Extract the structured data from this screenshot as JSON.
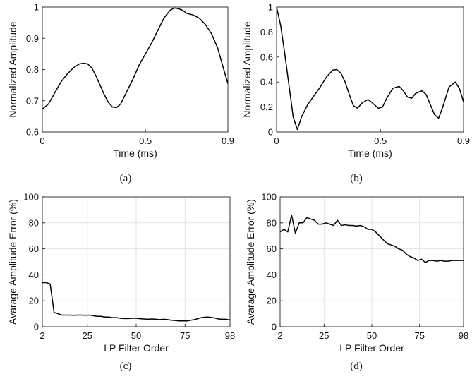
{
  "chart_data": [
    {
      "id": "a",
      "type": "line",
      "caption": "(a)",
      "xlabel": "Time (ms)",
      "ylabel": "Normalized Amplitude",
      "xlim": [
        0,
        0.9
      ],
      "ylim": [
        0.6,
        1
      ],
      "xticks": [
        0,
        0.5,
        0.9
      ],
      "xtick_labels": [
        "0",
        "0.5",
        "0.9"
      ],
      "yticks": [
        0.6,
        0.7,
        0.8,
        0.9,
        1
      ],
      "ytick_labels": [
        "0.6",
        "0.7",
        "0.8",
        "0.9",
        "1"
      ],
      "grid": false,
      "series": [
        {
          "x": [
            0,
            0.03,
            0.06,
            0.09,
            0.12,
            0.15,
            0.18,
            0.2,
            0.22,
            0.24,
            0.26,
            0.28,
            0.3,
            0.32,
            0.34,
            0.36,
            0.38,
            0.41,
            0.44,
            0.47,
            0.5,
            0.53,
            0.56,
            0.59,
            0.62,
            0.64,
            0.66,
            0.68,
            0.7,
            0.73,
            0.76,
            0.79,
            0.82,
            0.85,
            0.88,
            0.9
          ],
          "y": [
            0.673,
            0.69,
            0.725,
            0.76,
            0.785,
            0.805,
            0.818,
            0.82,
            0.818,
            0.805,
            0.78,
            0.75,
            0.72,
            0.695,
            0.68,
            0.678,
            0.69,
            0.73,
            0.77,
            0.815,
            0.85,
            0.885,
            0.925,
            0.965,
            0.99,
            0.997,
            0.995,
            0.99,
            0.98,
            0.975,
            0.965,
            0.945,
            0.915,
            0.87,
            0.8,
            0.755
          ]
        }
      ]
    },
    {
      "id": "b",
      "type": "line",
      "caption": "(b)",
      "xlabel": "Time (ms)",
      "ylabel": "Normalized Amplitude",
      "xlim": [
        0,
        0.9
      ],
      "ylim": [
        0,
        1
      ],
      "xticks": [
        0,
        0.5,
        0.9
      ],
      "xtick_labels": [
        "0",
        "0.5",
        "0.9"
      ],
      "yticks": [
        0,
        0.2,
        0.4,
        0.6,
        0.8,
        1
      ],
      "ytick_labels": [
        "0",
        "0.2",
        "0.4",
        "0.6",
        "0.8",
        "1"
      ],
      "grid": false,
      "series": [
        {
          "x": [
            0,
            0.02,
            0.04,
            0.06,
            0.08,
            0.1,
            0.12,
            0.15,
            0.18,
            0.21,
            0.24,
            0.27,
            0.29,
            0.31,
            0.33,
            0.35,
            0.37,
            0.39,
            0.41,
            0.44,
            0.46,
            0.49,
            0.51,
            0.53,
            0.56,
            0.59,
            0.61,
            0.63,
            0.65,
            0.67,
            0.7,
            0.72,
            0.74,
            0.76,
            0.78,
            0.8,
            0.83,
            0.86,
            0.88,
            0.9
          ],
          "y": [
            1,
            0.85,
            0.62,
            0.37,
            0.12,
            0.02,
            0.12,
            0.22,
            0.29,
            0.36,
            0.44,
            0.495,
            0.5,
            0.47,
            0.4,
            0.3,
            0.21,
            0.19,
            0.23,
            0.26,
            0.235,
            0.19,
            0.2,
            0.27,
            0.35,
            0.365,
            0.33,
            0.28,
            0.27,
            0.31,
            0.33,
            0.3,
            0.22,
            0.14,
            0.11,
            0.2,
            0.36,
            0.4,
            0.35,
            0.24
          ]
        }
      ]
    },
    {
      "id": "c",
      "type": "line",
      "caption": "(c)",
      "xlabel": "LP Filter Order",
      "ylabel": "Avarage Amplitude Error (%)",
      "xlim": [
        2,
        98
      ],
      "ylim": [
        0,
        100
      ],
      "xticks": [
        2,
        25,
        50,
        75,
        98
      ],
      "xtick_labels": [
        "2",
        "25",
        "50",
        "75",
        "98"
      ],
      "yticks": [
        0,
        20,
        40,
        60,
        80,
        100
      ],
      "ytick_labels": [
        "0",
        "20",
        "40",
        "60",
        "80",
        "100"
      ],
      "grid": true,
      "series": [
        {
          "x": [
            2,
            4,
            6,
            8,
            10,
            12,
            14,
            16,
            18,
            20,
            22,
            24,
            26,
            28,
            30,
            32,
            34,
            36,
            38,
            40,
            42,
            44,
            46,
            48,
            50,
            52,
            54,
            56,
            58,
            60,
            62,
            64,
            66,
            68,
            70,
            72,
            74,
            76,
            78,
            80,
            82,
            84,
            86,
            88,
            90,
            92,
            94,
            96,
            98
          ],
          "y": [
            34,
            34,
            33,
            11,
            10,
            9,
            9,
            9,
            8.8,
            9,
            9,
            8.8,
            9,
            8.5,
            8,
            8,
            7.5,
            7.5,
            7,
            7,
            6.5,
            6.3,
            6.3,
            6.5,
            6.5,
            6.2,
            6,
            5.8,
            6,
            5.8,
            5.5,
            5.8,
            5.5,
            5,
            4.8,
            4.5,
            4.5,
            4.5,
            5,
            5.5,
            6.5,
            7.2,
            7.5,
            7.3,
            6.8,
            6,
            5.8,
            5.8,
            5.2
          ]
        }
      ]
    },
    {
      "id": "d",
      "type": "line",
      "caption": "(d)",
      "xlabel": "LP Filter Order",
      "ylabel": "Avarage Amplitude Error (%)",
      "xlim": [
        2,
        98
      ],
      "ylim": [
        0,
        100
      ],
      "xticks": [
        2,
        25,
        50,
        75,
        98
      ],
      "xtick_labels": [
        "2",
        "25",
        "50",
        "75",
        "98"
      ],
      "yticks": [
        0,
        20,
        40,
        60,
        80,
        100
      ],
      "ytick_labels": [
        "0",
        "20",
        "40",
        "60",
        "80",
        "100"
      ],
      "grid": true,
      "series": [
        {
          "x": [
            2,
            4,
            6,
            8,
            10,
            12,
            14,
            16,
            18,
            20,
            22,
            24,
            26,
            28,
            30,
            32,
            34,
            36,
            38,
            40,
            42,
            44,
            46,
            48,
            50,
            52,
            54,
            56,
            58,
            60,
            62,
            64,
            66,
            68,
            70,
            72,
            74,
            76,
            78,
            80,
            82,
            84,
            86,
            88,
            90,
            92,
            94,
            96,
            98
          ],
          "y": [
            73,
            75,
            73,
            86,
            72,
            80,
            80,
            84,
            83,
            82,
            79,
            79,
            80,
            79,
            78,
            82,
            78,
            78.5,
            78,
            78,
            77.5,
            78,
            77,
            75,
            75,
            73,
            70,
            67,
            64,
            63,
            62,
            60,
            59,
            56,
            54,
            53,
            51,
            52,
            49.5,
            51,
            51,
            50.5,
            51,
            50.5,
            50.5,
            51,
            51,
            51,
            51
          ]
        }
      ]
    }
  ]
}
